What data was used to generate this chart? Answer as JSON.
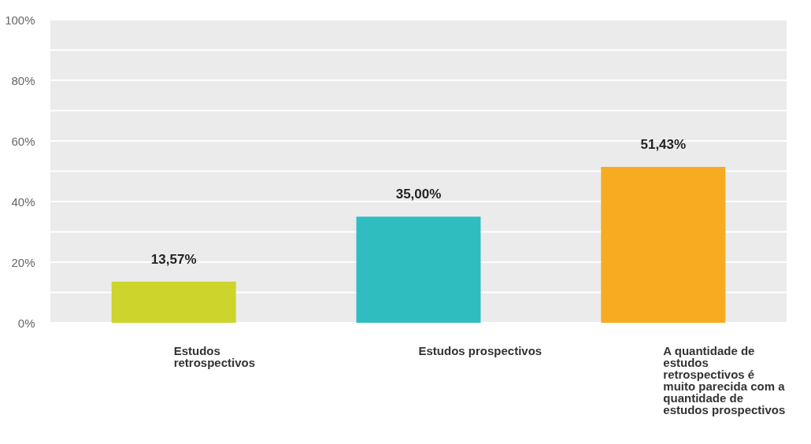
{
  "chart_data": {
    "type": "bar",
    "categories": [
      "Estudos retrospectivos",
      "Estudos prospectivos",
      "A quantidade de estudos retrospectivos é muito parecida com a quantidade de estudos prospectivos"
    ],
    "values": [
      13.57,
      35.0,
      51.43
    ],
    "colors": [
      "#cdd42c",
      "#30bdc0",
      "#f6ab21"
    ],
    "value_labels": [
      "13,57%",
      "35,00%",
      "51,43%"
    ],
    "ylim": [
      0,
      100
    ],
    "yticks": [
      {
        "value": 0,
        "label": "0%"
      },
      {
        "value": 10,
        "label": null
      },
      {
        "value": 20,
        "label": "20%"
      },
      {
        "value": 30,
        "label": null
      },
      {
        "value": 40,
        "label": "40%"
      },
      {
        "value": 50,
        "label": null
      },
      {
        "value": 60,
        "label": "60%"
      },
      {
        "value": 70,
        "label": null
      },
      {
        "value": 80,
        "label": "80%"
      },
      {
        "value": 90,
        "label": null
      },
      {
        "value": 100,
        "label": "100%"
      }
    ],
    "grid": true
  }
}
